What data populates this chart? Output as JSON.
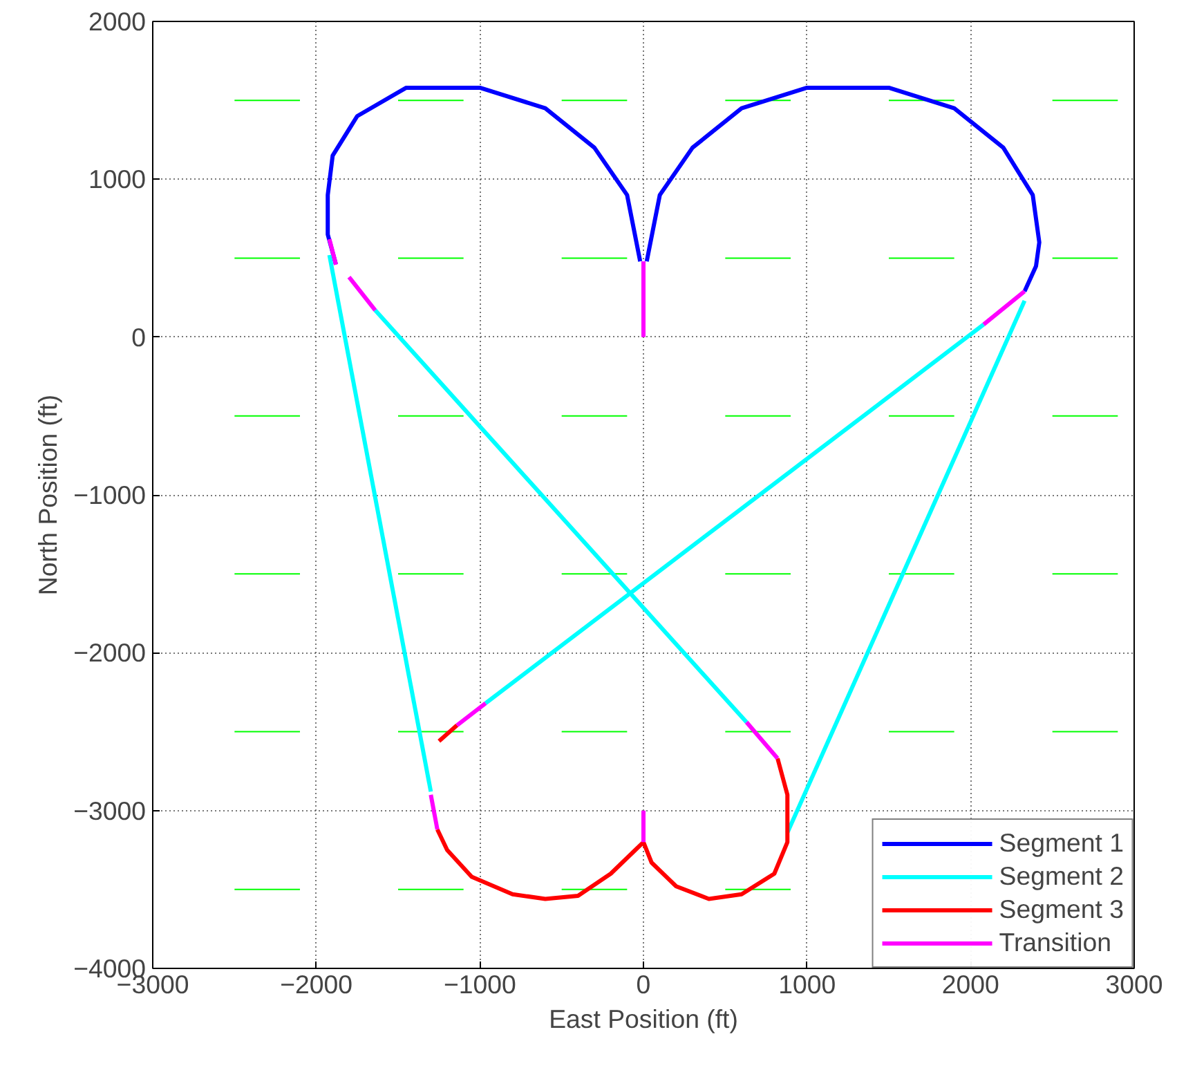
{
  "chart_data": {
    "type": "line",
    "xlabel": "East Position (ft)",
    "ylabel": "North Position (ft)",
    "xlim": [
      -3000,
      3000
    ],
    "ylim": [
      -4000,
      2000
    ],
    "xticks": [
      -3000,
      -2000,
      -1000,
      0,
      1000,
      2000,
      3000
    ],
    "yticks": [
      -4000,
      -3000,
      -2000,
      -1000,
      0,
      1000,
      2000
    ],
    "grid": true,
    "legend": "bottom right",
    "series": [
      {
        "color": "#00ff00",
        "x": [
          -2500,
          -2100
        ],
        "values": [
          1500,
          1500
        ]
      },
      {
        "color": "#00ff00",
        "x": [
          -1500,
          -1100
        ],
        "values": [
          1500,
          1500
        ]
      },
      {
        "color": "#00ff00",
        "x": [
          -500,
          -100
        ],
        "values": [
          1500,
          1500
        ]
      },
      {
        "color": "#00ff00",
        "x": [
          500,
          900
        ],
        "values": [
          1500,
          1500
        ]
      },
      {
        "color": "#00ff00",
        "x": [
          1500,
          1900
        ],
        "values": [
          1500,
          1500
        ]
      },
      {
        "color": "#00ff00",
        "x": [
          2500,
          2900
        ],
        "values": [
          1500,
          1500
        ]
      },
      {
        "color": "#00ff00",
        "x": [
          -2500,
          -2100
        ],
        "values": [
          500,
          500
        ]
      },
      {
        "color": "#00ff00",
        "x": [
          -1500,
          -1100
        ],
        "values": [
          500,
          500
        ]
      },
      {
        "color": "#00ff00",
        "x": [
          -500,
          -100
        ],
        "values": [
          500,
          500
        ]
      },
      {
        "color": "#00ff00",
        "x": [
          500,
          900
        ],
        "values": [
          500,
          500
        ]
      },
      {
        "color": "#00ff00",
        "x": [
          1500,
          1900
        ],
        "values": [
          500,
          500
        ]
      },
      {
        "color": "#00ff00",
        "x": [
          2500,
          2900
        ],
        "values": [
          500,
          500
        ]
      },
      {
        "color": "#00ff00",
        "x": [
          -2500,
          -2100
        ],
        "values": [
          -500,
          -500
        ]
      },
      {
        "color": "#00ff00",
        "x": [
          -1500,
          -1100
        ],
        "values": [
          -500,
          -500
        ]
      },
      {
        "color": "#00ff00",
        "x": [
          -500,
          -100
        ],
        "values": [
          -500,
          -500
        ]
      },
      {
        "color": "#00ff00",
        "x": [
          500,
          900
        ],
        "values": [
          -500,
          -500
        ]
      },
      {
        "color": "#00ff00",
        "x": [
          1500,
          1900
        ],
        "values": [
          -500,
          -500
        ]
      },
      {
        "color": "#00ff00",
        "x": [
          2500,
          2900
        ],
        "values": [
          -500,
          -500
        ]
      },
      {
        "color": "#00ff00",
        "x": [
          -2500,
          -2100
        ],
        "values": [
          -1500,
          -1500
        ]
      },
      {
        "color": "#00ff00",
        "x": [
          -1500,
          -1100
        ],
        "values": [
          -1500,
          -1500
        ]
      },
      {
        "color": "#00ff00",
        "x": [
          -500,
          -100
        ],
        "values": [
          -1500,
          -1500
        ]
      },
      {
        "color": "#00ff00",
        "x": [
          500,
          900
        ],
        "values": [
          -1500,
          -1500
        ]
      },
      {
        "color": "#00ff00",
        "x": [
          1500,
          1900
        ],
        "values": [
          -1500,
          -1500
        ]
      },
      {
        "color": "#00ff00",
        "x": [
          2500,
          2900
        ],
        "values": [
          -1500,
          -1500
        ]
      },
      {
        "color": "#00ff00",
        "x": [
          -2500,
          -2100
        ],
        "values": [
          -2500,
          -2500
        ]
      },
      {
        "color": "#00ff00",
        "x": [
          -1500,
          -1100
        ],
        "values": [
          -2500,
          -2500
        ]
      },
      {
        "color": "#00ff00",
        "x": [
          -500,
          -100
        ],
        "values": [
          -2500,
          -2500
        ]
      },
      {
        "color": "#00ff00",
        "x": [
          500,
          900
        ],
        "values": [
          -2500,
          -2500
        ]
      },
      {
        "color": "#00ff00",
        "x": [
          1500,
          1900
        ],
        "values": [
          -2500,
          -2500
        ]
      },
      {
        "color": "#00ff00",
        "x": [
          2500,
          2900
        ],
        "values": [
          -2500,
          -2500
        ]
      },
      {
        "color": "#00ff00",
        "x": [
          -2500,
          -2100
        ],
        "values": [
          -3500,
          -3500
        ]
      },
      {
        "color": "#00ff00",
        "x": [
          -1500,
          -1100
        ],
        "values": [
          -3500,
          -3500
        ]
      },
      {
        "color": "#00ff00",
        "x": [
          -500,
          -100
        ],
        "values": [
          -3500,
          -3500
        ]
      },
      {
        "color": "#00ff00",
        "x": [
          500,
          900
        ],
        "values": [
          -3500,
          -3500
        ]
      },
      {
        "name": "Segment 1",
        "color": "#0000ff",
        "x": [
          20,
          100,
          300,
          600,
          1000,
          1500,
          1900,
          2200,
          2380,
          2420,
          2400,
          2330
        ],
        "values": [
          480,
          900,
          1200,
          1450,
          1580,
          1580,
          1450,
          1200,
          900,
          600,
          450,
          290
        ]
      },
      {
        "color": "#0000ff",
        "x": [
          -20,
          -100,
          -300,
          -600,
          -1000,
          -1450,
          -1750,
          -1900,
          -1930,
          -1930,
          -1880
        ],
        "values": [
          480,
          900,
          1200,
          1450,
          1580,
          1580,
          1400,
          1150,
          900,
          650,
          460
        ]
      },
      {
        "name": "Segment 2",
        "color": "#00ffff",
        "x": [
          -1640,
          630
        ],
        "values": [
          170,
          -2440
        ]
      },
      {
        "color": "#00ffff",
        "x": [
          2080,
          -965
        ],
        "values": [
          80,
          -2320
        ]
      },
      {
        "color": "#00ffff",
        "x": [
          2330,
          880
        ],
        "values": [
          230,
          -3140
        ]
      },
      {
        "color": "#00ffff",
        "x": [
          -1920,
          -1300
        ],
        "values": [
          520,
          -2880
        ]
      },
      {
        "name": "Segment 3",
        "color": "#ff0000",
        "x": [
          -1260,
          -1200,
          -1050,
          -800,
          -600,
          -400,
          -200,
          -50,
          0,
          50,
          200,
          400,
          600,
          800,
          880,
          880,
          820
        ],
        "values": [
          -3120,
          -3250,
          -3420,
          -3530,
          -3560,
          -3540,
          -3400,
          -3250,
          -3200,
          -3330,
          -3480,
          -3560,
          -3530,
          -3400,
          -3200,
          -2900,
          -2670
        ]
      },
      {
        "color": "#ff0000",
        "x": [
          -1140,
          -1250
        ],
        "values": [
          -2460,
          -2560
        ]
      },
      {
        "name": "Transition",
        "color": "#ff00ff",
        "x": [
          0,
          0
        ],
        "values": [
          0,
          480
        ]
      },
      {
        "color": "#ff00ff",
        "x": [
          2330,
          2080
        ],
        "values": [
          290,
          80
        ]
      },
      {
        "color": "#ff00ff",
        "x": [
          -1920,
          -1880
        ],
        "values": [
          620,
          460
        ]
      },
      {
        "color": "#ff00ff",
        "x": [
          -1800,
          -1640
        ],
        "values": [
          380,
          170
        ]
      },
      {
        "color": "#ff00ff",
        "x": [
          630,
          820
        ],
        "values": [
          -2440,
          -2670
        ]
      },
      {
        "color": "#ff00ff",
        "x": [
          -965,
          -1140
        ],
        "values": [
          -2320,
          -2460
        ]
      },
      {
        "color": "#ff00ff",
        "x": [
          -1300,
          -1260
        ],
        "values": [
          -2900,
          -3120
        ]
      },
      {
        "color": "#ff00ff",
        "x": [
          0,
          0
        ],
        "values": [
          -3000,
          -3200
        ]
      }
    ]
  }
}
